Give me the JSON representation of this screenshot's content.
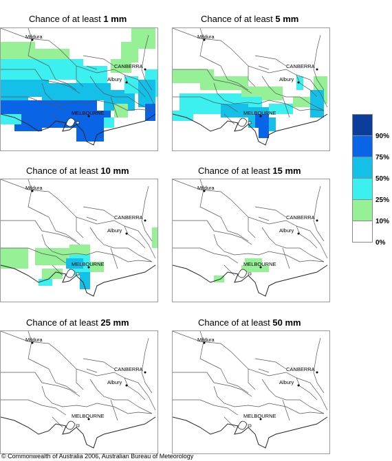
{
  "panels": [
    {
      "prefix": "Chance of at least ",
      "amount": "1 mm"
    },
    {
      "prefix": "Chance of at least ",
      "amount": "5 mm"
    },
    {
      "prefix": "Chance of at least ",
      "amount": "10 mm"
    },
    {
      "prefix": "Chance of at least ",
      "amount": "15 mm"
    },
    {
      "prefix": "Chance of at least ",
      "amount": "25 mm"
    },
    {
      "prefix": "Chance of at least ",
      "amount": "50 mm"
    }
  ],
  "places": {
    "mildura": "Mildura",
    "canberra": "CANBERRA",
    "albury": "Albury",
    "melbourne": "MELBOURNE"
  },
  "legend": {
    "labels": [
      "90%",
      "75%",
      "50%",
      "25%",
      "10%",
      "0%"
    ],
    "colors": [
      "#0a3d9c",
      "#0a64e6",
      "#14c0e8",
      "#3cf0f0",
      "#96f096",
      "#ffffff"
    ]
  },
  "copyright": "© Commonwealth of Australia 2006, Australian Bureau of Meteorology"
}
